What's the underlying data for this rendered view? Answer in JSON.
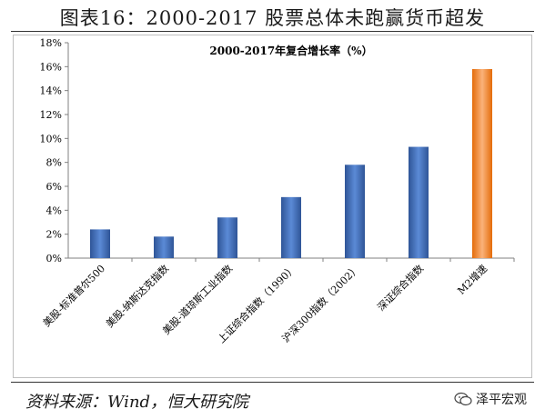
{
  "figure_title": "图表16：2000-2017 股票总体未跑赢货币超发",
  "source": "资料来源：Wind，恒大研究院",
  "watermark": {
    "text": "泽平宏观",
    "icon": "wechat-icon"
  },
  "colors": {
    "bar_blue": "#4472C4",
    "bar_orange": "#F79646",
    "axis": "#808080"
  },
  "chart_data": {
    "type": "bar",
    "title": "2000-2017年复合增长率（%）",
    "xlabel": "",
    "ylabel": "",
    "ylim": [
      0,
      18
    ],
    "yticks": [
      "0%",
      "2%",
      "4%",
      "6%",
      "8%",
      "10%",
      "12%",
      "14%",
      "16%",
      "18%"
    ],
    "grid": false,
    "categories": [
      "美股-标准普尔500",
      "美股-纳斯达克指数",
      "美股-道琼斯工业指数",
      "上证综合指数（1990）",
      "沪深300指数（2002）",
      "深证综合指数",
      "M2增速"
    ],
    "values": [
      2.4,
      1.8,
      3.4,
      5.1,
      7.8,
      9.3,
      15.8
    ],
    "bar_colors": [
      "#4472C4",
      "#4472C4",
      "#4472C4",
      "#4472C4",
      "#4472C4",
      "#4472C4",
      "#F79646"
    ]
  }
}
